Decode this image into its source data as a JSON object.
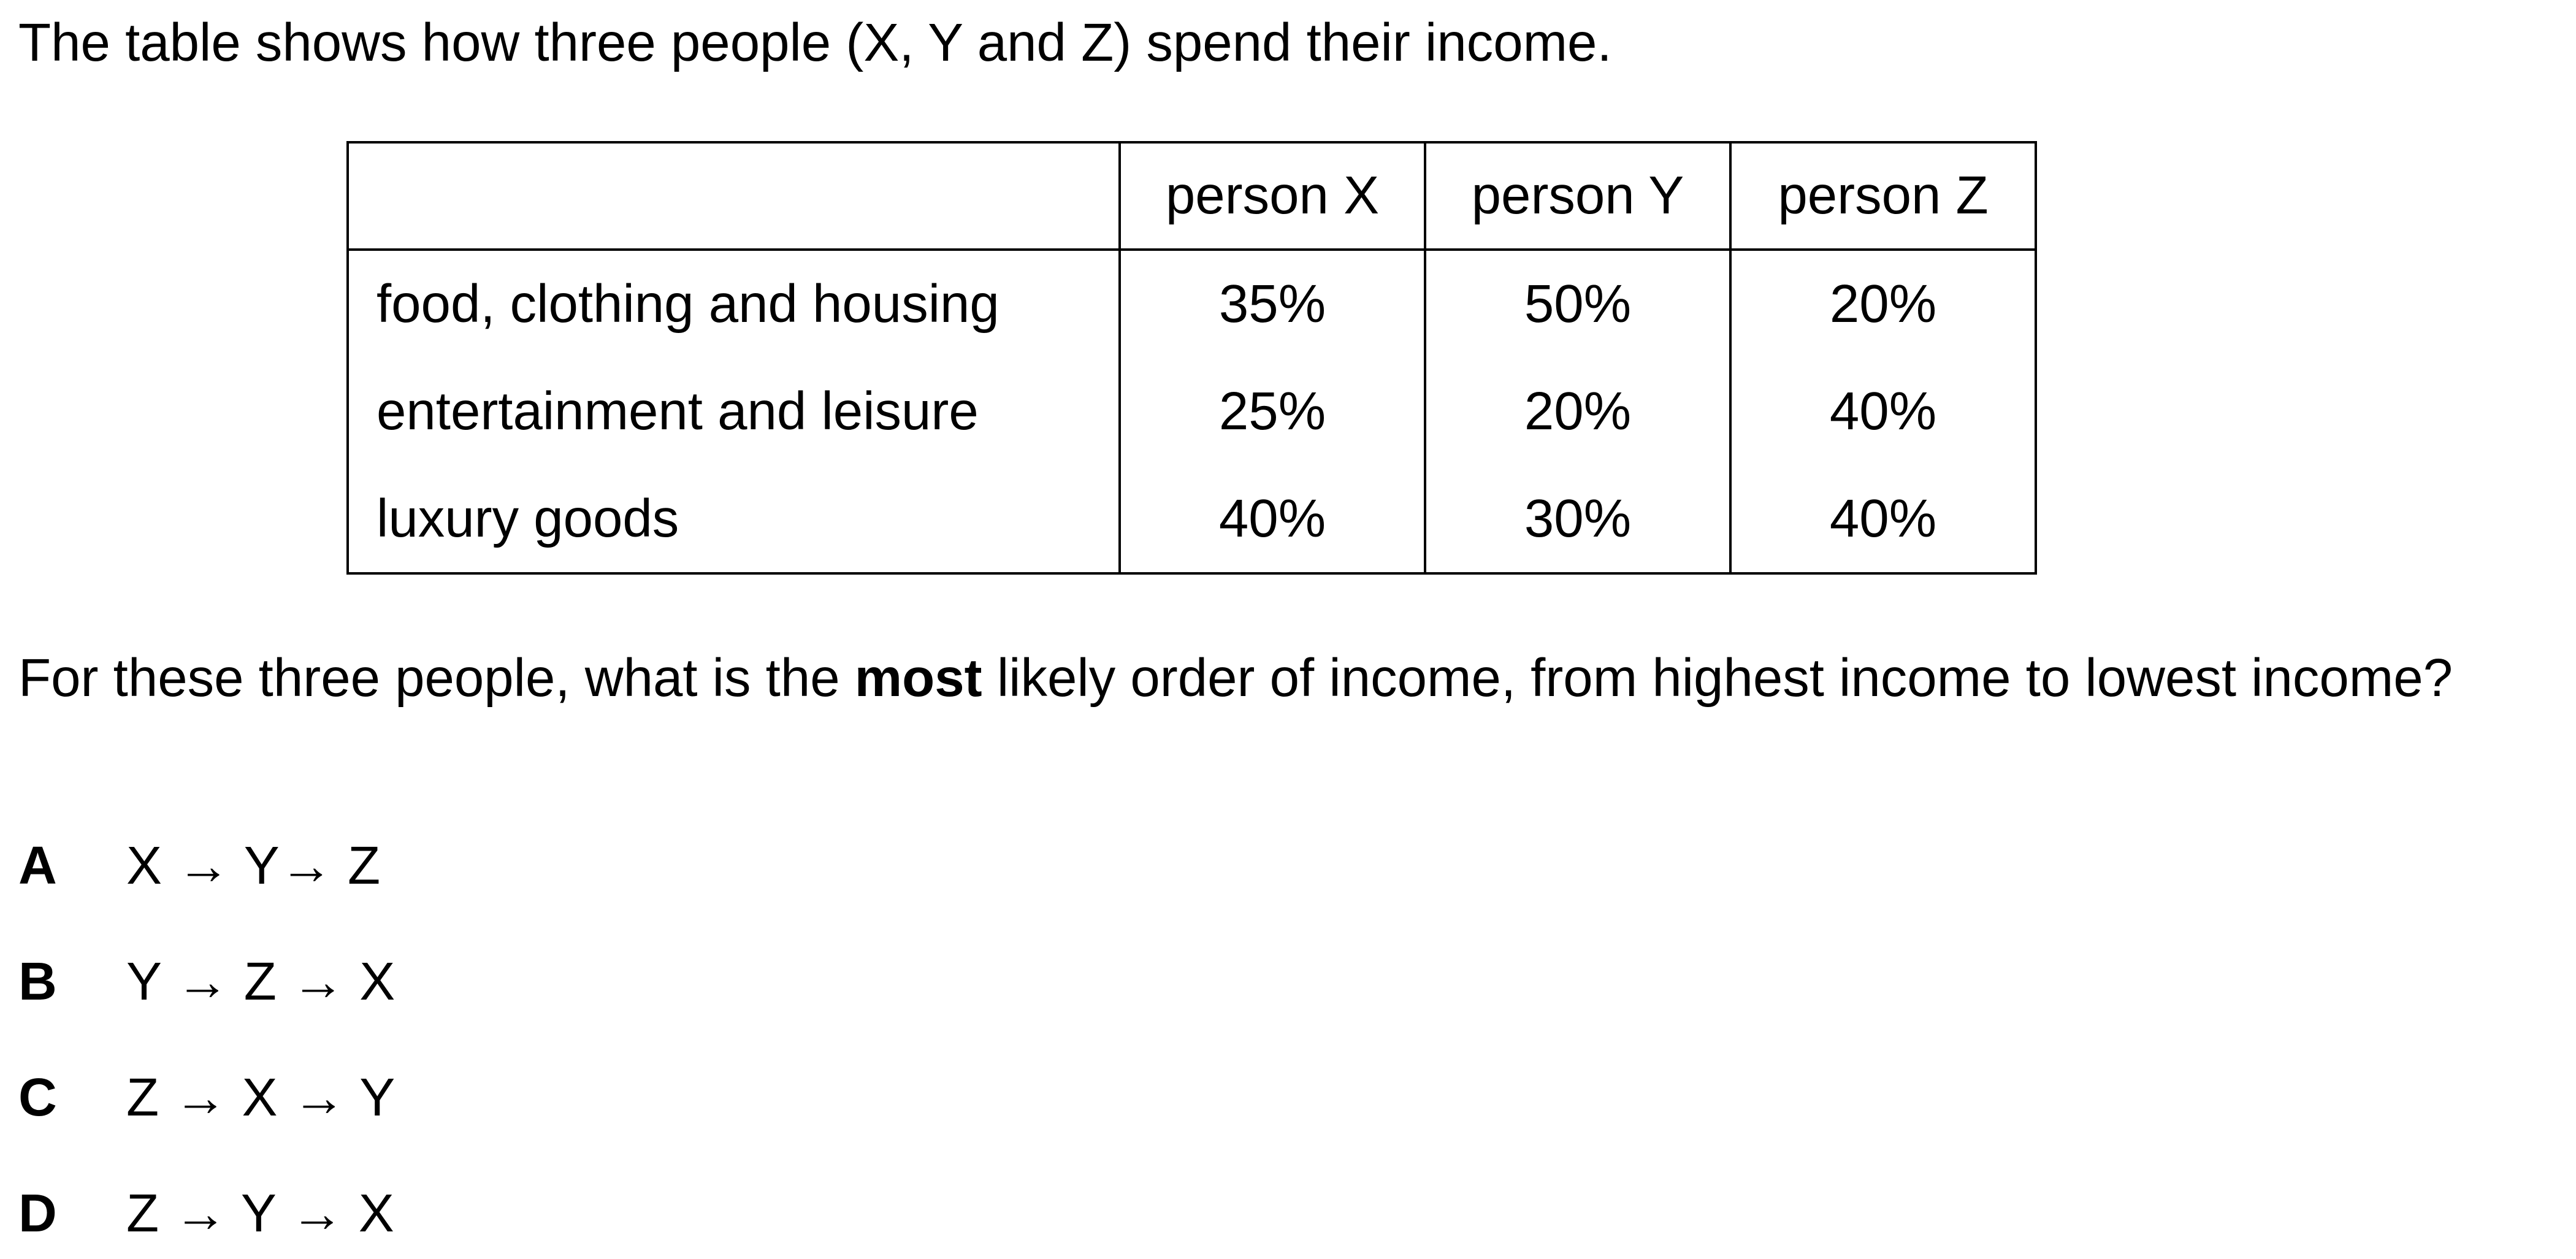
{
  "intro": "The table shows how three people (X, Y and Z) spend their income.",
  "table": {
    "corner": "",
    "columns": [
      "person X",
      "person Y",
      "person Z"
    ],
    "rows": [
      {
        "label": "food, clothing and housing",
        "values": [
          "35%",
          "50%",
          "20%"
        ]
      },
      {
        "label": "entertainment and leisure",
        "values": [
          "25%",
          "20%",
          "40%"
        ]
      },
      {
        "label": "luxury goods",
        "values": [
          "40%",
          "30%",
          "40%"
        ]
      }
    ]
  },
  "question": {
    "before": "For these three people, what is the ",
    "emphasis": "most",
    "after": " likely order of income, from highest income to lowest income?"
  },
  "options": [
    {
      "letter": "A",
      "text": "X → Y→  Z"
    },
    {
      "letter": "B",
      "text": "Y → Z → X"
    },
    {
      "letter": "C",
      "text": "Z → X → Y"
    },
    {
      "letter": "D",
      "text": "Z → Y → X"
    }
  ]
}
